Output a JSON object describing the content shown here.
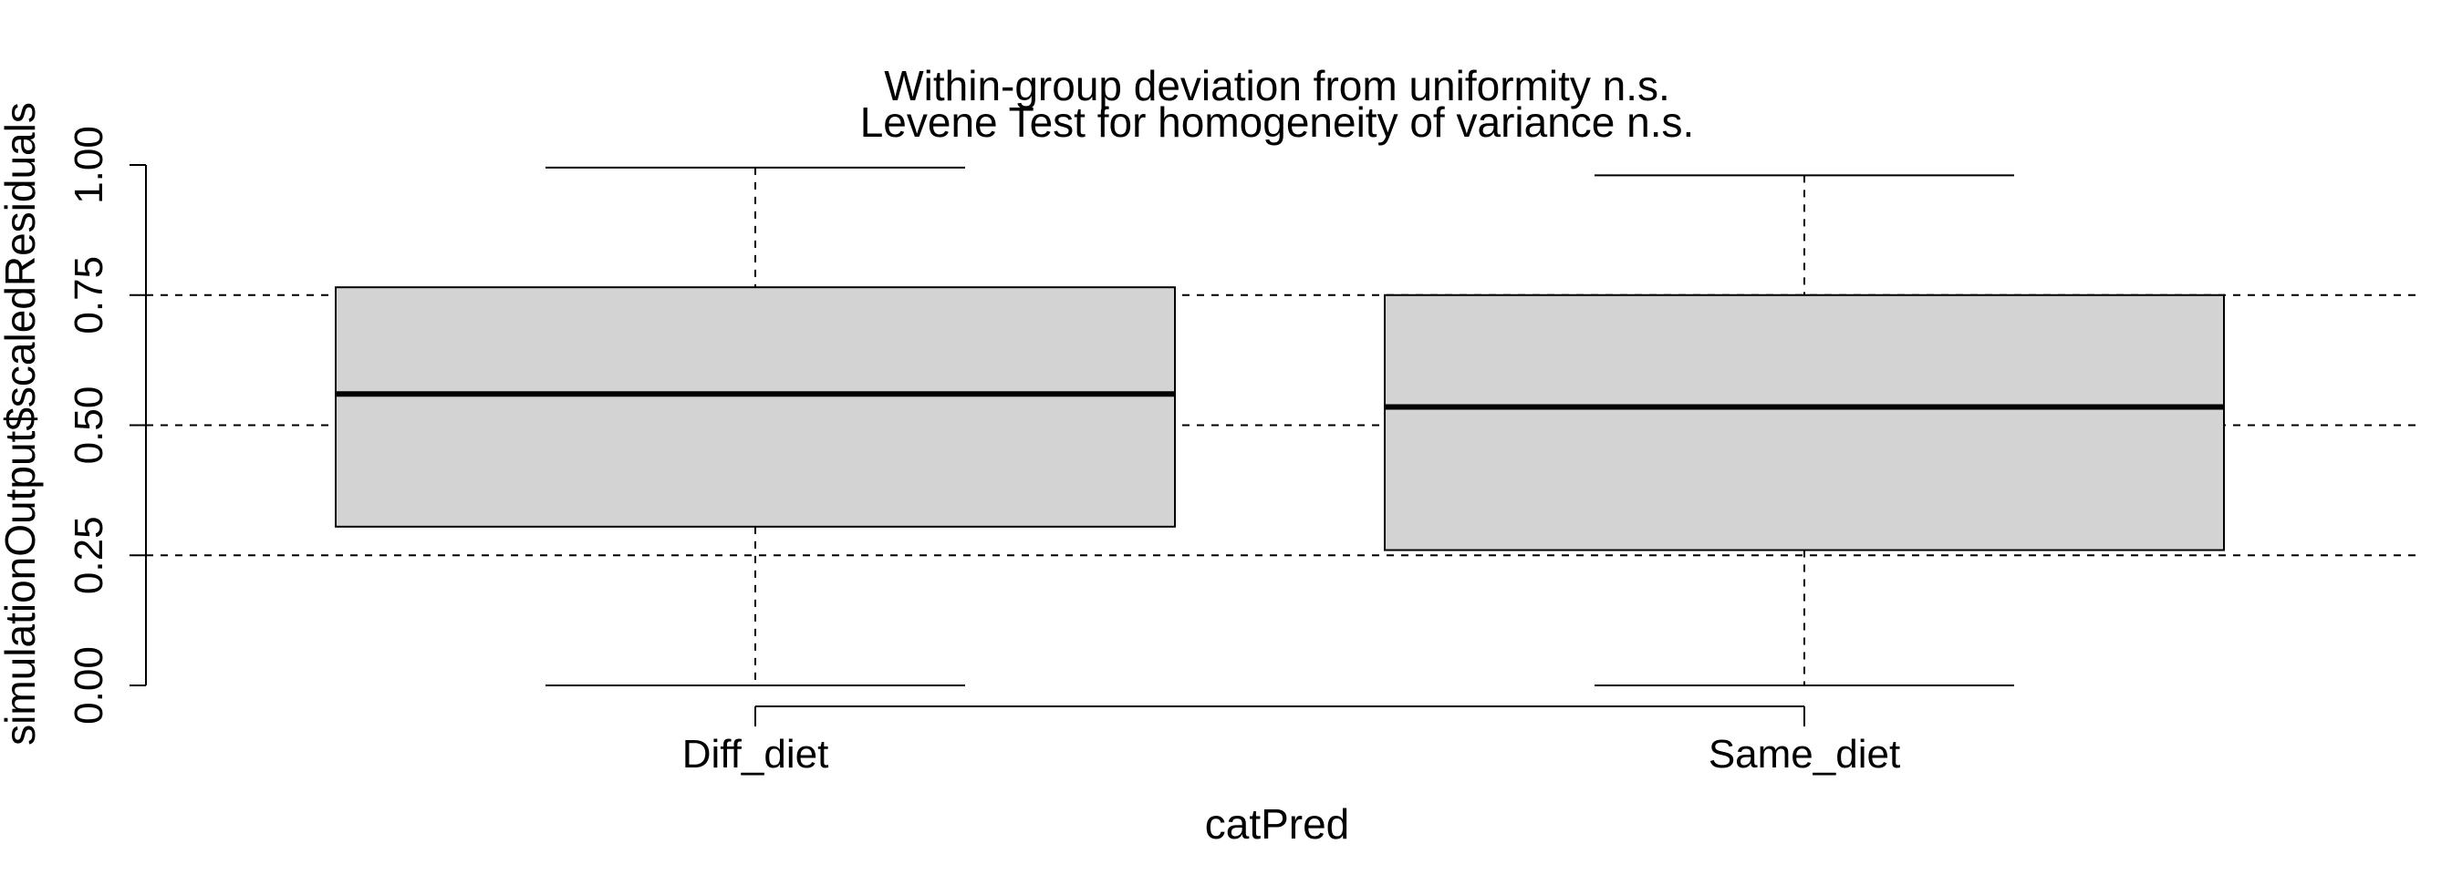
{
  "chart_data": {
    "type": "boxplot",
    "title": [
      "Within-group deviation from uniformity n.s.",
      "Levene Test for homogeneity of variance n.s."
    ],
    "xlabel": "catPred",
    "ylabel": "simulationOutput$scaledResiduals",
    "categories": [
      "Diff_diet",
      "Same_diet"
    ],
    "boxes": [
      {
        "category": "Diff_diet",
        "min": 0.0,
        "q1": 0.305,
        "median": 0.56,
        "q3": 0.765,
        "max": 0.995
      },
      {
        "category": "Same_diet",
        "min": 0.0,
        "q1": 0.26,
        "median": 0.535,
        "q3": 0.75,
        "max": 0.98
      }
    ],
    "yticks": [
      0.0,
      0.25,
      0.5,
      0.75,
      1.0
    ],
    "ytick_labels": [
      "0.00",
      "0.25",
      "0.50",
      "0.75",
      "1.00"
    ],
    "ylim": [
      0,
      1
    ],
    "reference_lines": [
      0.25,
      0.5,
      0.75
    ],
    "colors": {
      "box_fill": "#d3d3d3",
      "line": "#000000"
    }
  }
}
